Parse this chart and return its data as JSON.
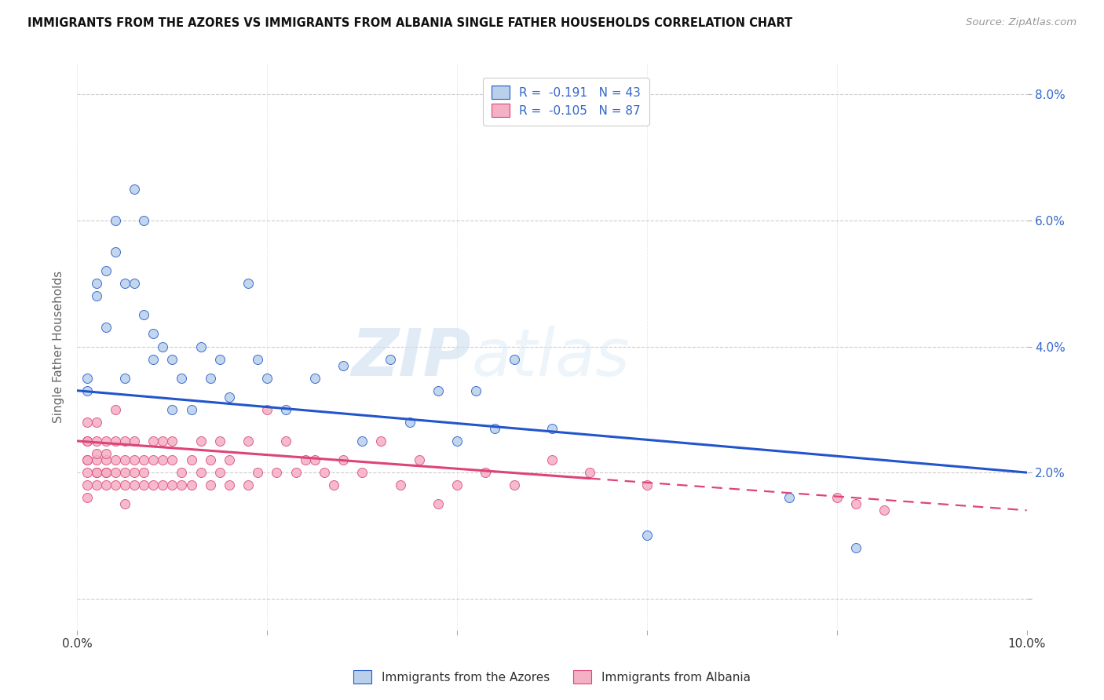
{
  "title": "IMMIGRANTS FROM THE AZORES VS IMMIGRANTS FROM ALBANIA SINGLE FATHER HOUSEHOLDS CORRELATION CHART",
  "source": "Source: ZipAtlas.com",
  "ylabel": "Single Father Households",
  "xlim": [
    0.0,
    0.1
  ],
  "ylim": [
    -0.005,
    0.085
  ],
  "yticks": [
    0.0,
    0.02,
    0.04,
    0.06,
    0.08
  ],
  "ytick_labels": [
    "",
    "2.0%",
    "4.0%",
    "6.0%",
    "8.0%"
  ],
  "xticks": [
    0.0,
    0.02,
    0.04,
    0.06,
    0.08,
    0.1
  ],
  "xtick_labels": [
    "0.0%",
    "",
    "",
    "",
    "",
    "10.0%"
  ],
  "legend1_label": "R =  -0.191   N = 43",
  "legend2_label": "R =  -0.105   N = 87",
  "watermark_text": "ZIPatlas",
  "series1_color": "#b8d0ea",
  "series2_color": "#f4b0c5",
  "line1_color": "#2255cc",
  "line2_color": "#dd4477",
  "line1_x0": 0.0,
  "line1_y0": 0.033,
  "line1_x1": 0.1,
  "line1_y1": 0.02,
  "line2_x0": 0.0,
  "line2_y0": 0.025,
  "line2_x1": 0.1,
  "line2_y1": 0.014,
  "line2_solid_end": 0.054,
  "azores_x": [
    0.001,
    0.001,
    0.002,
    0.002,
    0.003,
    0.003,
    0.004,
    0.004,
    0.005,
    0.005,
    0.006,
    0.006,
    0.007,
    0.007,
    0.008,
    0.008,
    0.009,
    0.01,
    0.01,
    0.011,
    0.012,
    0.013,
    0.014,
    0.015,
    0.016,
    0.018,
    0.019,
    0.02,
    0.022,
    0.025,
    0.028,
    0.03,
    0.033,
    0.035,
    0.038,
    0.04,
    0.042,
    0.044,
    0.046,
    0.05,
    0.06,
    0.075,
    0.082
  ],
  "azores_y": [
    0.035,
    0.033,
    0.048,
    0.05,
    0.043,
    0.052,
    0.055,
    0.06,
    0.05,
    0.035,
    0.065,
    0.05,
    0.06,
    0.045,
    0.042,
    0.038,
    0.04,
    0.038,
    0.03,
    0.035,
    0.03,
    0.04,
    0.035,
    0.038,
    0.032,
    0.05,
    0.038,
    0.035,
    0.03,
    0.035,
    0.037,
    0.025,
    0.038,
    0.028,
    0.033,
    0.025,
    0.033,
    0.027,
    0.038,
    0.027,
    0.01,
    0.016,
    0.008
  ],
  "albania_x": [
    0.001,
    0.001,
    0.001,
    0.001,
    0.001,
    0.001,
    0.001,
    0.001,
    0.002,
    0.002,
    0.002,
    0.002,
    0.002,
    0.002,
    0.002,
    0.003,
    0.003,
    0.003,
    0.003,
    0.003,
    0.003,
    0.004,
    0.004,
    0.004,
    0.004,
    0.004,
    0.005,
    0.005,
    0.005,
    0.005,
    0.005,
    0.006,
    0.006,
    0.006,
    0.006,
    0.007,
    0.007,
    0.007,
    0.008,
    0.008,
    0.008,
    0.009,
    0.009,
    0.009,
    0.01,
    0.01,
    0.01,
    0.011,
    0.011,
    0.012,
    0.012,
    0.013,
    0.013,
    0.014,
    0.014,
    0.015,
    0.015,
    0.016,
    0.016,
    0.018,
    0.018,
    0.019,
    0.02,
    0.021,
    0.022,
    0.023,
    0.024,
    0.025,
    0.026,
    0.027,
    0.028,
    0.03,
    0.032,
    0.034,
    0.036,
    0.038,
    0.04,
    0.043,
    0.046,
    0.05,
    0.054,
    0.06,
    0.08,
    0.082,
    0.085
  ],
  "albania_y": [
    0.025,
    0.028,
    0.022,
    0.02,
    0.018,
    0.016,
    0.025,
    0.022,
    0.025,
    0.022,
    0.02,
    0.018,
    0.028,
    0.023,
    0.02,
    0.022,
    0.02,
    0.025,
    0.018,
    0.023,
    0.02,
    0.03,
    0.022,
    0.025,
    0.02,
    0.018,
    0.022,
    0.025,
    0.02,
    0.018,
    0.015,
    0.022,
    0.025,
    0.02,
    0.018,
    0.022,
    0.02,
    0.018,
    0.022,
    0.025,
    0.018,
    0.022,
    0.025,
    0.018,
    0.025,
    0.022,
    0.018,
    0.02,
    0.018,
    0.022,
    0.018,
    0.025,
    0.02,
    0.022,
    0.018,
    0.02,
    0.025,
    0.022,
    0.018,
    0.025,
    0.018,
    0.02,
    0.03,
    0.02,
    0.025,
    0.02,
    0.022,
    0.022,
    0.02,
    0.018,
    0.022,
    0.02,
    0.025,
    0.018,
    0.022,
    0.015,
    0.018,
    0.02,
    0.018,
    0.022,
    0.02,
    0.018,
    0.016,
    0.015,
    0.014
  ]
}
